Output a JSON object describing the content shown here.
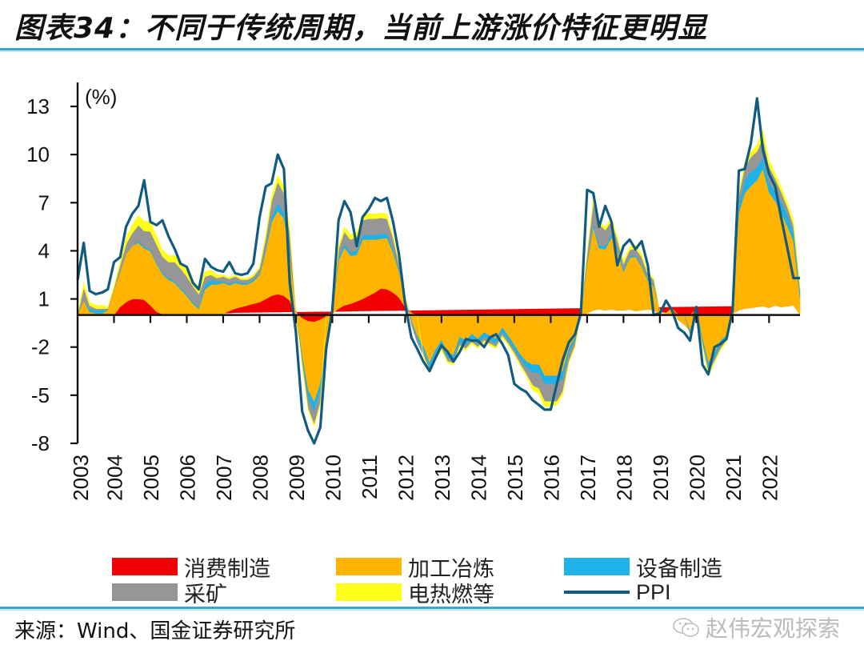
{
  "header": {
    "title": "图表34：不同于传统周期，当前上游涨价特征更明显"
  },
  "legend": {
    "items": [
      {
        "label": "消费制造",
        "color": "#f00000",
        "kind": "area"
      },
      {
        "label": "加工冶炼",
        "color": "#ffb400",
        "kind": "area"
      },
      {
        "label": "设备制造",
        "color": "#1fb2e8",
        "kind": "area"
      },
      {
        "label": "采矿",
        "color": "#969696",
        "kind": "area"
      },
      {
        "label": "电热燃等",
        "color": "#ffff1a",
        "kind": "area"
      },
      {
        "label": "PPI",
        "color": "#125b80",
        "kind": "line"
      }
    ]
  },
  "footer": {
    "source": "来源：Wind、国金证券研究所",
    "watermark": "赵伟宏观探索"
  },
  "chart_data": {
    "type": "area",
    "title": "不同于传统周期，当前上游涨价特征更明显",
    "xlabel": "",
    "ylabel": "(%)",
    "unit_label": "(%)",
    "ylim": [
      -8,
      13
    ],
    "yticks": [
      13,
      10,
      7,
      4,
      1,
      -2,
      -5,
      -8
    ],
    "xlim": [
      2003.0,
      2022.85
    ],
    "xtick_labels": [
      "2003",
      "2004",
      "2005",
      "2006",
      "2007",
      "2008",
      "2009",
      "2010",
      "2011",
      "2012",
      "2013",
      "2014",
      "2015",
      "2016",
      "2017",
      "2018",
      "2019",
      "2020",
      "2021",
      "2022"
    ],
    "grid": false,
    "legend_position": "bottom",
    "stacked": true,
    "x": [
      2003.0,
      2003.17,
      2003.33,
      2003.5,
      2003.67,
      2003.83,
      2004.0,
      2004.17,
      2004.33,
      2004.5,
      2004.67,
      2004.83,
      2005.0,
      2005.17,
      2005.33,
      2005.5,
      2005.67,
      2005.83,
      2006.0,
      2006.17,
      2006.33,
      2006.5,
      2006.67,
      2006.83,
      2007.0,
      2007.17,
      2007.33,
      2007.5,
      2007.67,
      2007.83,
      2008.0,
      2008.17,
      2008.33,
      2008.5,
      2008.67,
      2008.83,
      2009.0,
      2009.17,
      2009.33,
      2009.5,
      2009.67,
      2009.83,
      2010.0,
      2010.17,
      2010.33,
      2010.5,
      2010.67,
      2010.83,
      2011.0,
      2011.17,
      2011.33,
      2011.5,
      2011.67,
      2011.83,
      2012.0,
      2012.17,
      2012.33,
      2012.5,
      2012.67,
      2012.83,
      2013.0,
      2013.17,
      2013.33,
      2013.5,
      2013.67,
      2013.83,
      2014.0,
      2014.17,
      2014.33,
      2014.5,
      2014.67,
      2014.83,
      2015.0,
      2015.17,
      2015.33,
      2015.5,
      2015.67,
      2015.83,
      2016.0,
      2016.17,
      2016.33,
      2016.5,
      2016.67,
      2016.83,
      2017.0,
      2017.17,
      2017.33,
      2017.5,
      2017.67,
      2017.83,
      2018.0,
      2018.17,
      2018.33,
      2018.5,
      2018.67,
      2018.83,
      2019.0,
      2019.17,
      2019.33,
      2019.5,
      2019.67,
      2019.83,
      2020.0,
      2020.17,
      2020.33,
      2020.5,
      2020.67,
      2020.83,
      2021.0,
      2021.17,
      2021.33,
      2021.5,
      2021.67,
      2021.83,
      2022.0,
      2022.17,
      2022.33,
      2022.5,
      2022.67,
      2022.85
    ],
    "series": [
      {
        "name": "消费制造",
        "color": "#f00000",
        "values": [
          0.0,
          0.0,
          0.0,
          0.0,
          0.0,
          0.0,
          0.0,
          0.5,
          0.8,
          1.0,
          1.0,
          0.95,
          0.6,
          0.2,
          0.05,
          0.0,
          0.0,
          0.0,
          0.0,
          0.0,
          0.0,
          0.0,
          0.0,
          0.0,
          0.1,
          0.25,
          0.4,
          0.5,
          0.6,
          0.7,
          0.8,
          1.0,
          1.2,
          1.3,
          1.2,
          0.9,
          0.2,
          -0.2,
          -0.4,
          -0.45,
          -0.3,
          -0.1,
          0.1,
          0.4,
          0.6,
          0.7,
          0.85,
          1.0,
          1.2,
          1.4,
          1.65,
          1.6,
          1.4,
          1.1,
          0.5,
          0.1,
          0.0,
          0.0,
          0.0,
          0.0,
          0.0,
          0.0,
          0.0,
          0.0,
          0.0,
          0.0,
          0.0,
          0.0,
          0.0,
          0.0,
          0.0,
          0.0,
          0.0,
          0.0,
          0.0,
          0.0,
          0.0,
          0.0,
          0.0,
          0.0,
          0.0,
          0.0,
          0.0,
          0.0,
          0.1,
          0.3,
          0.35,
          0.3,
          0.35,
          0.3,
          0.3,
          0.35,
          0.25,
          0.3,
          0.35,
          0.3,
          0.2,
          0.1,
          0.0,
          0.0,
          0.0,
          0.0,
          0.0,
          0.0,
          0.0,
          0.0,
          0.0,
          0.0,
          0.1,
          0.3,
          0.4,
          0.45,
          0.5,
          0.55,
          0.45,
          0.6,
          0.5,
          0.55,
          0.6
        ]
      },
      {
        "name": "加工冶炼",
        "color": "#ffb400",
        "values": [
          0.0,
          0.9,
          0.2,
          0.1,
          0.1,
          0.3,
          1.6,
          2.2,
          3.0,
          3.3,
          3.5,
          3.2,
          3.4,
          3.0,
          2.5,
          2.2,
          2.0,
          1.6,
          1.2,
          0.7,
          0.4,
          1.6,
          1.9,
          1.9,
          1.9,
          1.6,
          1.6,
          1.4,
          1.3,
          1.4,
          1.7,
          3.0,
          4.6,
          5.2,
          4.8,
          3.0,
          -0.4,
          -2.4,
          -4.3,
          -5.0,
          -4.0,
          -1.8,
          0.0,
          3.0,
          3.6,
          3.0,
          2.9,
          3.7,
          3.5,
          3.3,
          3.1,
          3.2,
          2.5,
          1.6,
          0.5,
          -0.4,
          -1.3,
          -2.0,
          -3.0,
          -2.2,
          -1.6,
          -2.4,
          -2.5,
          -1.4,
          -1.6,
          -1.2,
          -1.5,
          -1.1,
          -1.3,
          -1.5,
          -0.8,
          -1.3,
          -1.9,
          -2.5,
          -2.9,
          -3.1,
          -3.1,
          -3.8,
          -3.8,
          -3.8,
          -3.5,
          -2.1,
          -1.4,
          0.1,
          3.1,
          5.2,
          3.8,
          3.8,
          4.5,
          3.7,
          2.4,
          3.2,
          3.4,
          2.7,
          1.8,
          1.5,
          -0.1,
          0.0,
          0.4,
          -0.3,
          -0.6,
          -1.0,
          0.3,
          -1.5,
          -3.0,
          -2.4,
          -1.6,
          -1.3,
          0.2,
          6.1,
          7.2,
          7.6,
          7.9,
          8.6,
          7.2,
          6.5,
          5.9,
          5.0,
          4.0,
          1.1
        ]
      },
      {
        "name": "设备制造",
        "color": "#1fb2e8",
        "values": [
          0.0,
          0.0,
          0.2,
          0.2,
          0.2,
          0.0,
          0.0,
          0.0,
          0.0,
          0.0,
          0.1,
          0.1,
          0.1,
          0.1,
          0.1,
          0.1,
          0.1,
          0.1,
          0.1,
          0.1,
          0.1,
          0.3,
          0.3,
          0.2,
          0.1,
          0.1,
          0.1,
          0.1,
          0.1,
          0.1,
          0.1,
          0.2,
          0.3,
          0.5,
          0.4,
          0.2,
          0.0,
          -0.2,
          -0.5,
          -0.6,
          -0.5,
          -0.2,
          0.0,
          0.2,
          0.2,
          0.2,
          0.3,
          0.3,
          0.3,
          0.3,
          0.3,
          0.3,
          0.2,
          0.1,
          0.0,
          -0.1,
          -0.2,
          -0.3,
          -0.3,
          -0.3,
          -0.3,
          -0.3,
          -0.3,
          -0.3,
          -0.3,
          -0.3,
          -0.3,
          -0.3,
          -0.3,
          -0.3,
          -0.3,
          -0.3,
          -0.3,
          -0.3,
          -0.4,
          -0.5,
          -0.5,
          -0.5,
          -0.5,
          -0.5,
          -0.5,
          -0.3,
          -0.2,
          0.0,
          0.1,
          0.2,
          0.2,
          0.2,
          0.2,
          0.2,
          0.1,
          0.1,
          0.1,
          0.1,
          0.1,
          0.1,
          0.0,
          0.0,
          0.0,
          0.0,
          0.0,
          -0.1,
          0.0,
          -0.2,
          -0.3,
          -0.3,
          -0.3,
          -0.2,
          0.0,
          0.5,
          0.8,
          0.9,
          0.8,
          0.7,
          0.6,
          0.6,
          0.7,
          0.7,
          0.6,
          0.3
        ]
      },
      {
        "name": "采矿",
        "color": "#969696",
        "values": [
          0.0,
          0.8,
          0.2,
          0.1,
          0.1,
          0.1,
          0.1,
          0.4,
          0.6,
          0.8,
          1.0,
          1.0,
          1.1,
          1.1,
          1.0,
          1.0,
          1.2,
          1.2,
          1.1,
          1.0,
          0.8,
          0.5,
          0.3,
          0.2,
          0.3,
          0.3,
          0.3,
          0.2,
          0.2,
          0.2,
          0.3,
          0.6,
          1.0,
          1.3,
          1.2,
          1.0,
          0.0,
          -0.3,
          -0.6,
          -0.8,
          -0.7,
          -0.3,
          0.0,
          0.5,
          0.8,
          0.8,
          0.8,
          0.9,
          1.0,
          1.0,
          1.0,
          0.9,
          0.7,
          0.4,
          0.1,
          -0.1,
          -0.2,
          -0.2,
          -0.2,
          -0.2,
          -0.2,
          -0.2,
          -0.2,
          -0.2,
          -0.2,
          -0.2,
          -0.2,
          -0.2,
          -0.2,
          -0.2,
          -0.2,
          -0.2,
          -0.2,
          -0.3,
          -0.4,
          -0.8,
          -1.0,
          -1.1,
          -1.1,
          -1.1,
          -0.8,
          -0.5,
          -0.3,
          0.0,
          0.5,
          1.3,
          1.3,
          1.0,
          0.8,
          0.5,
          0.4,
          0.4,
          0.4,
          0.5,
          0.3,
          0.3,
          0.0,
          0.0,
          0.0,
          0.0,
          0.0,
          -0.1,
          0.0,
          -0.2,
          -0.3,
          -0.2,
          -0.2,
          -0.1,
          0.0,
          0.6,
          0.8,
          0.9,
          1.0,
          1.2,
          1.0,
          0.8,
          0.6,
          0.5,
          0.4,
          0.2
        ]
      },
      {
        "name": "电热燃等",
        "color": "#ffff1a",
        "values": [
          0.0,
          0.3,
          0.2,
          0.2,
          0.2,
          0.1,
          0.1,
          0.2,
          0.4,
          0.5,
          0.6,
          0.6,
          0.6,
          0.5,
          0.4,
          0.4,
          0.4,
          0.4,
          0.4,
          0.4,
          0.3,
          0.3,
          0.3,
          0.2,
          0.1,
          0.1,
          0.1,
          0.1,
          0.1,
          0.1,
          0.1,
          0.2,
          0.3,
          0.4,
          0.4,
          0.3,
          0.0,
          -0.1,
          -0.1,
          -0.1,
          -0.1,
          0.0,
          0.0,
          0.2,
          0.3,
          0.3,
          0.3,
          0.3,
          0.3,
          0.3,
          0.3,
          0.3,
          0.2,
          0.1,
          0.0,
          0.0,
          0.0,
          -0.1,
          -0.1,
          -0.1,
          -0.1,
          -0.1,
          -0.1,
          -0.1,
          -0.1,
          -0.1,
          -0.1,
          -0.1,
          -0.1,
          -0.1,
          -0.1,
          -0.1,
          -0.1,
          -0.1,
          -0.1,
          -0.3,
          -0.3,
          -0.3,
          -0.3,
          -0.2,
          -0.2,
          -0.1,
          -0.1,
          0.0,
          0.1,
          0.2,
          0.2,
          0.2,
          0.2,
          0.2,
          0.2,
          0.2,
          0.2,
          0.2,
          0.1,
          0.1,
          0.0,
          0.0,
          0.0,
          0.0,
          0.0,
          0.0,
          0.0,
          -0.1,
          -0.2,
          -0.1,
          -0.1,
          -0.1,
          0.0,
          0.2,
          0.3,
          0.3,
          0.4,
          0.5,
          0.4,
          0.3,
          0.3,
          0.3,
          0.3,
          0.2
        ]
      },
      {
        "name": "PPI",
        "color": "#125b80",
        "kind": "line",
        "values": [
          2.2,
          4.5,
          1.5,
          1.3,
          1.4,
          1.6,
          3.3,
          3.6,
          5.5,
          6.3,
          6.8,
          8.4,
          5.8,
          5.6,
          5.9,
          4.9,
          4.1,
          3.2,
          3.0,
          2.0,
          1.6,
          3.5,
          3.0,
          2.8,
          2.7,
          3.3,
          2.6,
          2.5,
          2.6,
          3.2,
          6.1,
          8.0,
          8.2,
          10.0,
          9.1,
          2.0,
          -1.1,
          -6.0,
          -7.2,
          -8.0,
          -7.0,
          -2.1,
          0.3,
          5.9,
          7.1,
          6.4,
          4.3,
          6.1,
          6.6,
          7.3,
          7.1,
          7.3,
          5.8,
          3.8,
          0.7,
          -1.4,
          -2.1,
          -2.9,
          -3.5,
          -2.7,
          -1.9,
          -2.3,
          -2.9,
          -2.3,
          -1.5,
          -1.6,
          -1.6,
          -2.0,
          -1.4,
          -1.2,
          -1.8,
          -2.5,
          -4.3,
          -4.6,
          -4.8,
          -5.3,
          -5.6,
          -5.9,
          -5.9,
          -4.3,
          -2.8,
          -1.7,
          -1.2,
          0.1,
          7.8,
          7.6,
          5.5,
          6.8,
          5.8,
          3.1,
          4.3,
          4.7,
          4.1,
          4.6,
          3.1,
          0.0,
          0.1,
          0.9,
          0.3,
          -0.8,
          -1.1,
          -1.6,
          0.5,
          -3.1,
          -3.7,
          -2.0,
          -1.8,
          -1.5,
          0.3,
          9.0,
          9.1,
          10.7,
          13.5,
          10.3,
          8.8,
          8.0,
          6.1,
          4.2,
          2.3,
          2.3
        ]
      }
    ]
  }
}
